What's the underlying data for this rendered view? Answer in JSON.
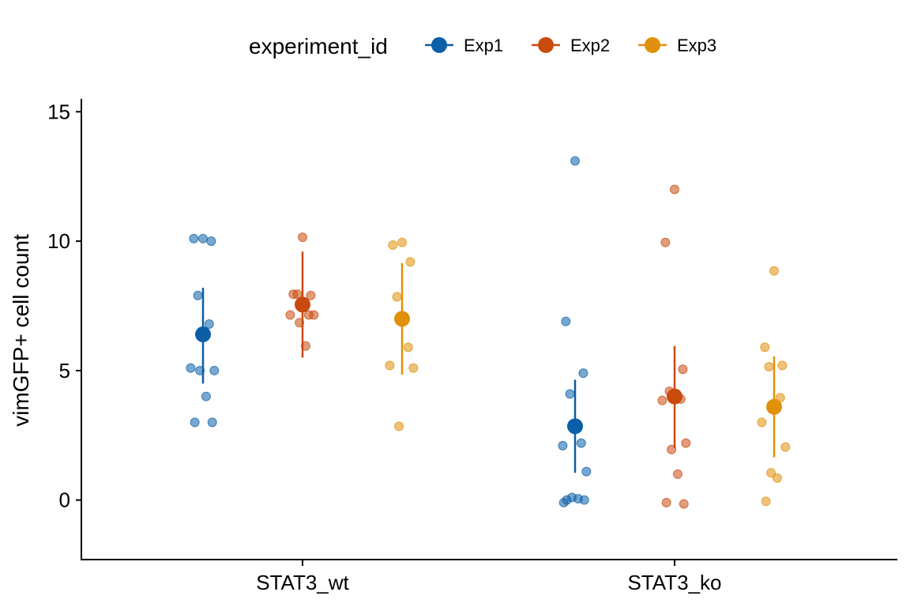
{
  "chart_data": {
    "type": "scatter",
    "title": "",
    "xlabel": "",
    "ylabel": "vimGFP+ cell count",
    "ylim": [
      -2.3,
      15.5
    ],
    "yticks": [
      0,
      5,
      10,
      15
    ],
    "grid": false,
    "legend": {
      "title": "experiment_id",
      "position": "top",
      "entries": [
        "Exp1",
        "Exp2",
        "Exp3"
      ]
    },
    "categories": [
      "STAT3_wt",
      "STAT3_ko"
    ],
    "series": [
      {
        "name": "Exp1",
        "color": "#0A5FA8",
        "points": {
          "STAT3_wt": [
            10.1,
            10.1,
            10.0,
            7.9,
            6.8,
            5.1,
            5.0,
            5.0,
            4.0,
            3.0,
            3.0
          ],
          "STAT3_ko": [
            13.1,
            6.9,
            4.9,
            4.1,
            2.2,
            2.1,
            1.1,
            0.1,
            0.05,
            0.0,
            0.0,
            -0.1
          ]
        },
        "summary": {
          "STAT3_wt": {
            "mean": 6.4,
            "low": 4.5,
            "high": 8.2
          },
          "STAT3_ko": {
            "mean": 2.85,
            "low": 1.05,
            "high": 4.65
          }
        }
      },
      {
        "name": "Exp2",
        "color": "#C94A0E",
        "points": {
          "STAT3_wt": [
            10.15,
            7.95,
            7.9,
            7.95,
            7.15,
            7.15,
            7.15,
            6.85,
            5.95
          ],
          "STAT3_ko": [
            12.0,
            9.95,
            5.05,
            4.2,
            3.9,
            3.85,
            2.2,
            1.95,
            1.0,
            -0.1,
            -0.15
          ]
        },
        "summary": {
          "STAT3_wt": {
            "mean": 7.55,
            "low": 5.5,
            "high": 9.6
          },
          "STAT3_ko": {
            "mean": 4.0,
            "low": 2.0,
            "high": 5.95
          }
        }
      },
      {
        "name": "Exp3",
        "color": "#E0900A",
        "points": {
          "STAT3_wt": [
            9.95,
            9.85,
            9.2,
            7.85,
            5.9,
            5.2,
            5.1,
            2.85
          ],
          "STAT3_ko": [
            8.85,
            5.9,
            5.2,
            5.15,
            3.95,
            3.0,
            2.05,
            1.05,
            0.85,
            -0.05
          ]
        },
        "summary": {
          "STAT3_wt": {
            "mean": 7.0,
            "low": 4.85,
            "high": 9.15
          },
          "STAT3_ko": {
            "mean": 3.6,
            "low": 1.65,
            "high": 5.55
          }
        }
      }
    ]
  }
}
